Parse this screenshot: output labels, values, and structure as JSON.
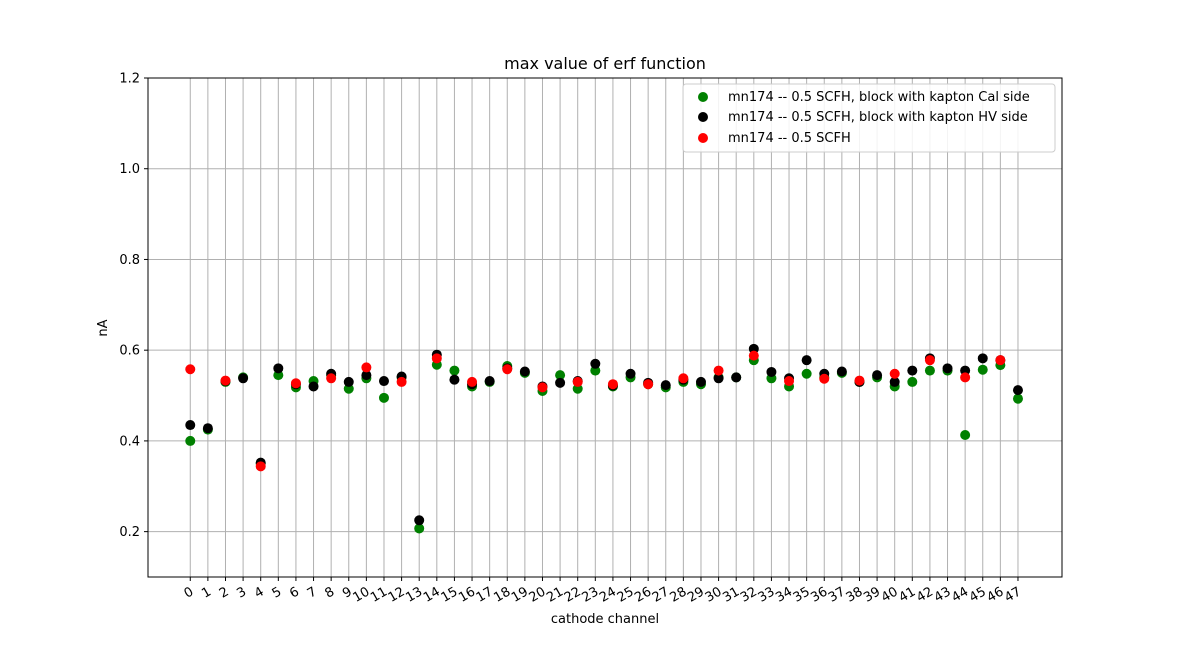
{
  "chart_data": {
    "type": "scatter",
    "title": "max value of erf function",
    "xlabel": "cathode channel",
    "ylabel": "nA",
    "ylim": [
      0.1,
      1.2
    ],
    "xlim": [
      -2.4,
      49.5
    ],
    "yticks": [
      0.2,
      0.4,
      0.6,
      0.8,
      1.0,
      1.2
    ],
    "ytick_labels": [
      "0.2",
      "0.4",
      "0.6",
      "0.8",
      "1.0",
      "1.2"
    ],
    "x": [
      0,
      1,
      2,
      3,
      4,
      5,
      6,
      7,
      8,
      9,
      10,
      11,
      12,
      13,
      14,
      15,
      16,
      17,
      18,
      19,
      20,
      21,
      22,
      23,
      24,
      25,
      26,
      27,
      28,
      29,
      30,
      31,
      32,
      33,
      34,
      35,
      36,
      37,
      38,
      39,
      40,
      41,
      42,
      43,
      44,
      45,
      46,
      47
    ],
    "xtick_labels": [
      "0",
      "1",
      "2",
      "3",
      "4",
      "5",
      "6",
      "7",
      "8",
      "9",
      "10",
      "11",
      "12",
      "13",
      "14",
      "15",
      "16",
      "17",
      "18",
      "19",
      "20",
      "21",
      "22",
      "23",
      "24",
      "25",
      "26",
      "27",
      "28",
      "29",
      "30",
      "31",
      "32",
      "33",
      "34",
      "35",
      "36",
      "37",
      "38",
      "39",
      "40",
      "41",
      "42",
      "43",
      "44",
      "45",
      "46",
      "47"
    ],
    "grid": true,
    "legend_position": "top-right",
    "series": [
      {
        "name": "mn174 -- 0.5 SCFH, block with kapton Cal side",
        "color": "#008000",
        "values": [
          0.4,
          0.425,
          0.53,
          0.54,
          0.35,
          0.545,
          0.518,
          0.532,
          0.545,
          0.515,
          0.538,
          0.495,
          0.54,
          0.207,
          0.568,
          0.555,
          0.52,
          0.53,
          0.565,
          0.55,
          0.51,
          0.545,
          0.515,
          0.555,
          0.52,
          0.54,
          0.525,
          0.518,
          0.53,
          0.525,
          0.54,
          0.54,
          0.578,
          0.538,
          0.52,
          0.548,
          0.54,
          0.55,
          0.53,
          0.54,
          0.52,
          0.53,
          0.555,
          0.555,
          0.413,
          0.557,
          0.567,
          0.493
        ]
      },
      {
        "name": "mn174 -- 0.5 SCFH, block with kapton HV side",
        "color": "#000000",
        "values": [
          0.435,
          0.428,
          0.532,
          0.538,
          0.352,
          0.56,
          0.525,
          0.52,
          0.548,
          0.53,
          0.545,
          0.532,
          0.542,
          0.225,
          0.59,
          0.535,
          0.525,
          0.532,
          0.56,
          0.553,
          0.52,
          0.528,
          0.532,
          0.57,
          0.522,
          0.548,
          0.528,
          0.523,
          0.535,
          0.53,
          0.538,
          0.54,
          0.603,
          0.552,
          0.538,
          0.578,
          0.548,
          0.553,
          0.53,
          0.545,
          0.53,
          0.555,
          0.582,
          0.56,
          0.555,
          0.582,
          0.578,
          0.512
        ]
      },
      {
        "name": "mn174 -- 0.5 SCFH",
        "color": "#ff0000",
        "values": [
          0.558,
          null,
          0.533,
          null,
          0.344,
          null,
          0.527,
          null,
          0.538,
          null,
          0.562,
          null,
          0.53,
          null,
          0.582,
          null,
          0.53,
          null,
          0.558,
          null,
          0.518,
          null,
          0.53,
          null,
          0.525,
          null,
          0.525,
          null,
          0.538,
          null,
          0.555,
          null,
          0.588,
          null,
          0.532,
          null,
          0.537,
          null,
          0.533,
          null,
          0.548,
          null,
          0.578,
          null,
          0.54,
          null,
          0.578,
          null
        ]
      }
    ]
  }
}
